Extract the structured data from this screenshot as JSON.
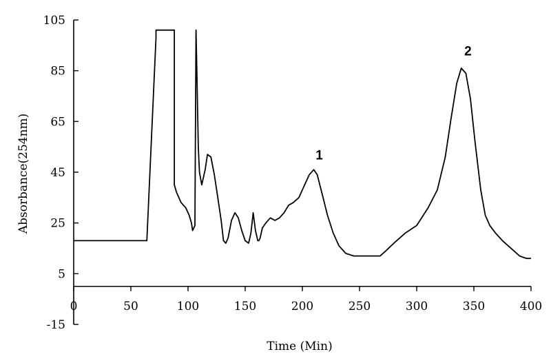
{
  "chart_data": {
    "type": "line",
    "title": "",
    "xlabel": "Time (Min)",
    "ylabel": "Absorbance(254nm)",
    "xlim": [
      0,
      400
    ],
    "ylim": [
      -15,
      105
    ],
    "x_ticks": [
      0,
      50,
      100,
      150,
      200,
      250,
      300,
      350,
      400
    ],
    "y_ticks": [
      105,
      85,
      65,
      45,
      25,
      5,
      -15
    ],
    "grid": false,
    "annotations": [
      {
        "text": "1",
        "x": 210,
        "y": 50
      },
      {
        "text": "2",
        "x": 340,
        "y": 91
      }
    ],
    "series": [
      {
        "x": [
          0,
          63,
          64,
          72,
          72,
          88,
          88,
          90,
          94,
          98,
          101,
          103,
          104,
          106,
          107,
          108,
          109,
          110,
          112,
          115,
          117,
          120,
          123,
          126,
          129,
          131,
          133,
          135,
          138,
          141,
          144,
          147,
          150,
          153,
          155,
          157,
          159,
          161,
          162,
          163,
          165,
          168,
          172,
          176,
          180,
          184,
          188,
          192,
          197,
          202,
          206,
          210,
          213,
          217,
          222,
          227,
          232,
          238,
          245,
          252,
          260,
          268,
          273,
          280,
          290,
          300,
          310,
          318,
          325,
          330,
          335,
          339,
          343,
          347,
          351,
          356,
          360,
          364,
          369,
          375,
          380,
          385,
          390,
          396,
          400
        ],
        "y": [
          18,
          18,
          18,
          98,
          101,
          101,
          40,
          37,
          33,
          31,
          28,
          25,
          22,
          24,
          101,
          78,
          55,
          45,
          40,
          46,
          52,
          51,
          44,
          35,
          26,
          18,
          17,
          19,
          26,
          29,
          27,
          22,
          18,
          17,
          21,
          29,
          22,
          18,
          18,
          19,
          23,
          25,
          27,
          26,
          27,
          29,
          32,
          33,
          35,
          40,
          44,
          46,
          44,
          37,
          28,
          21,
          16,
          13,
          12,
          12,
          12,
          12,
          14,
          17,
          21,
          24,
          31,
          38,
          51,
          66,
          80,
          86,
          84,
          74,
          57,
          38,
          28,
          24,
          21,
          18,
          16,
          14,
          12,
          11,
          11
        ]
      }
    ]
  }
}
